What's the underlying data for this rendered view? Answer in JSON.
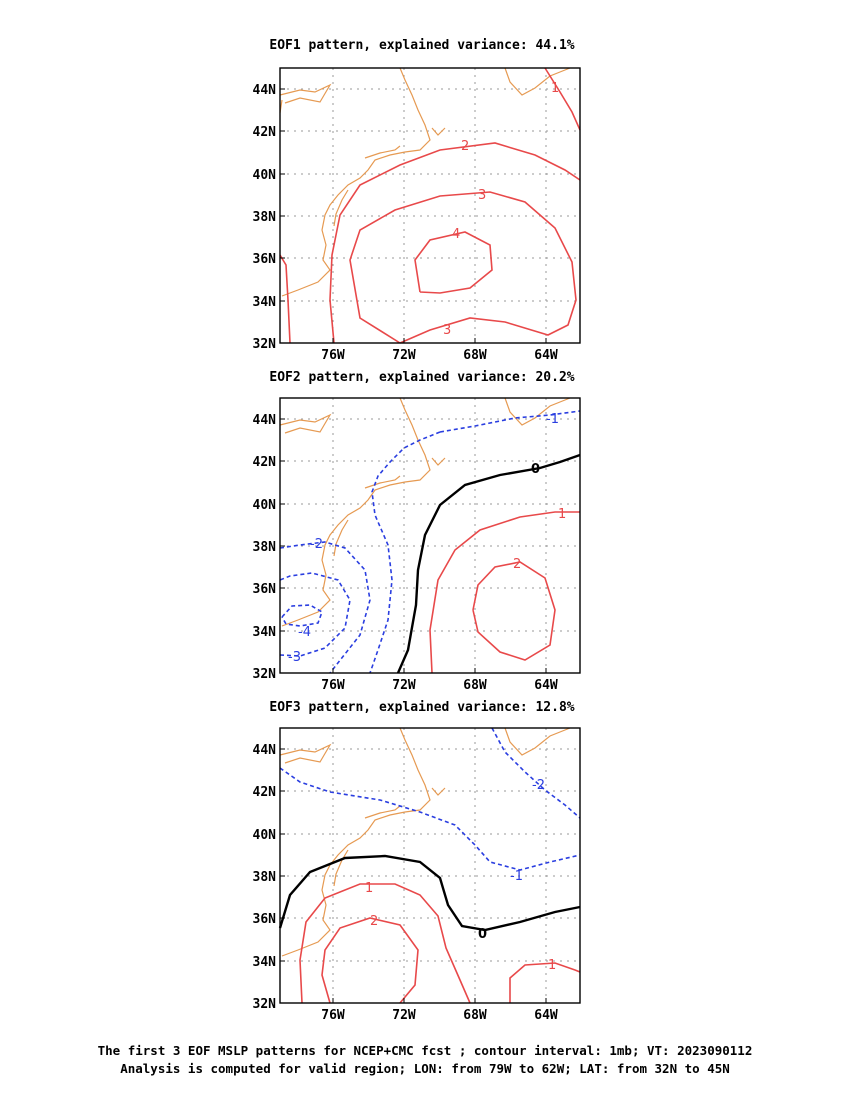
{
  "colors": {
    "coast": "#e69a52",
    "positive": "#e8494a",
    "negative": "#2a3ee0",
    "zero": "#000000",
    "grid": "#999999"
  },
  "panels": [
    {
      "title": "EOF1 pattern, explained variance: 44.1%",
      "x_ticks": [
        "76W",
        "72W",
        "68W",
        "64W"
      ],
      "y_ticks": [
        "44N",
        "42N",
        "40N",
        "38N",
        "36N",
        "34N",
        "32N"
      ],
      "contour_labels": [
        "1",
        "2",
        "3",
        "4",
        "3"
      ]
    },
    {
      "title": "EOF2 pattern, explained variance: 20.2%",
      "x_ticks": [
        "76W",
        "72W",
        "68W",
        "64W"
      ],
      "y_ticks": [
        "44N",
        "42N",
        "40N",
        "38N",
        "36N",
        "34N",
        "32N"
      ],
      "contour_labels": [
        "-1",
        "0",
        "1",
        "2",
        "-2",
        "-4",
        "-3"
      ]
    },
    {
      "title": "EOF3 pattern, explained variance: 12.8%",
      "x_ticks": [
        "76W",
        "72W",
        "68W",
        "64W"
      ],
      "y_ticks": [
        "44N",
        "42N",
        "40N",
        "38N",
        "36N",
        "34N",
        "32N"
      ],
      "contour_labels": [
        "-2",
        "-1",
        "0",
        "1",
        "2",
        "1"
      ]
    }
  ],
  "caption": {
    "line1": "The first 3 EOF MSLP patterns for NCEP+CMC fcst ; contour interval: 1mb; VT: 2023090112",
    "line2": "Analysis is computed for valid region; LON: from 79W to 62W; LAT: from 32N to 45N"
  }
}
